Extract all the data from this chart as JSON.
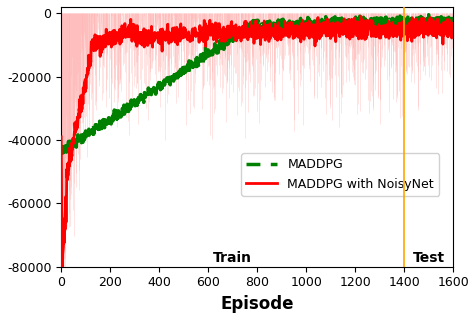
{
  "xlim": [
    0,
    1600
  ],
  "ylim": [
    -80000,
    2000
  ],
  "xlabel": "Episode",
  "yticks": [
    0,
    -20000,
    -40000,
    -60000,
    -80000
  ],
  "xticks": [
    0,
    200,
    400,
    600,
    800,
    1000,
    1200,
    1400,
    1600
  ],
  "train_test_split": 1400,
  "train_label": "Train",
  "test_label": "Test",
  "maddpg_color": "#008000",
  "noisy_color": "#ff0000",
  "noisy_raw_color": "#ffb0b0",
  "split_line_color": "#ffa500",
  "legend_maddpg": "MADDPG",
  "legend_noisy": "MADDPG with NoisyNet",
  "figsize": [
    4.76,
    3.2
  ],
  "dpi": 100
}
